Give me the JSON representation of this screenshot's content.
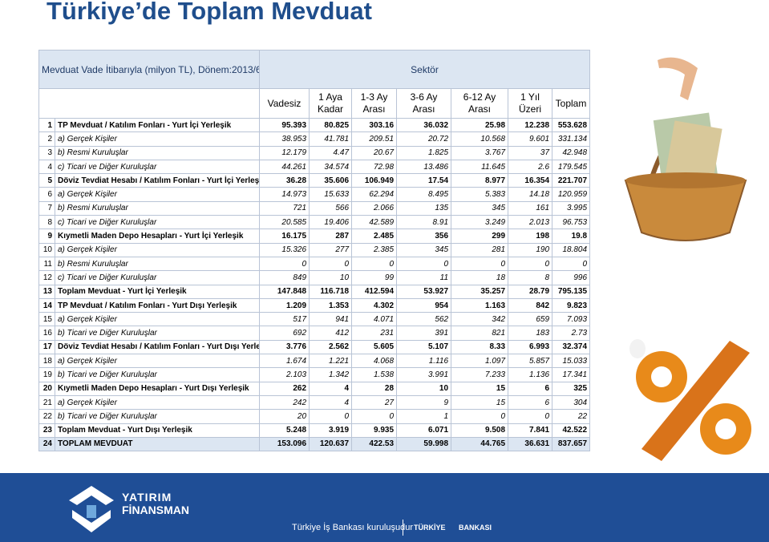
{
  "header": {
    "title": "Türkiye’de Toplam Mevduat"
  },
  "table": {
    "caption": "Mevduat Vade İtibarıyla (milyon TL), Dönem:2013/6",
    "sector": "Sektör",
    "columns": [
      "Vadesiz",
      "1 Aya Kadar",
      "1-3 Ay Arası",
      "3-6 Ay Arası",
      "6-12 Ay Arası",
      "1 Yıl Üzeri",
      "Toplam"
    ],
    "rows": [
      {
        "no": "1",
        "label": "TP Mevduat / Katılım Fonları - Yurt İçi Yerleşik",
        "values": [
          "95.393",
          "80.825",
          "303.16",
          "36.032",
          "25.98",
          "12.238",
          "553.628"
        ]
      },
      {
        "no": "2",
        "label": "a) Gerçek Kişiler",
        "values": [
          "38.953",
          "41.781",
          "209.51",
          "20.72",
          "10.568",
          "9.601",
          "331.134"
        ]
      },
      {
        "no": "3",
        "label": "b) Resmi Kuruluşlar",
        "values": [
          "12.179",
          "4.47",
          "20.67",
          "1.825",
          "3.767",
          "37",
          "42.948"
        ]
      },
      {
        "no": "4",
        "label": "c) Ticari ve Diğer Kuruluşlar",
        "values": [
          "44.261",
          "34.574",
          "72.98",
          "13.486",
          "11.645",
          "2.6",
          "179.545"
        ]
      },
      {
        "no": "5",
        "label": "Döviz Tevdiat Hesabı / Katılım Fonları - Yurt İçi Yerleşik",
        "values": [
          "36.28",
          "35.606",
          "106.949",
          "17.54",
          "8.977",
          "16.354",
          "221.707"
        ]
      },
      {
        "no": "6",
        "label": "a) Gerçek Kişiler",
        "values": [
          "14.973",
          "15.633",
          "62.294",
          "8.495",
          "5.383",
          "14.18",
          "120.959"
        ]
      },
      {
        "no": "7",
        "label": "b) Resmi Kuruluşlar",
        "values": [
          "721",
          "566",
          "2.066",
          "135",
          "345",
          "161",
          "3.995"
        ]
      },
      {
        "no": "8",
        "label": "c) Ticari ve Diğer Kuruluşlar",
        "values": [
          "20.585",
          "19.406",
          "42.589",
          "8.91",
          "3.249",
          "2.013",
          "96.753"
        ]
      },
      {
        "no": "9",
        "label": "Kıymetli Maden Depo Hesapları - Yurt İçi Yerleşik",
        "values": [
          "16.175",
          "287",
          "2.485",
          "356",
          "299",
          "198",
          "19.8"
        ]
      },
      {
        "no": "10",
        "label": "a) Gerçek Kişiler",
        "values": [
          "15.326",
          "277",
          "2.385",
          "345",
          "281",
          "190",
          "18.804"
        ]
      },
      {
        "no": "11",
        "label": "b) Resmi Kuruluşlar",
        "values": [
          "0",
          "0",
          "0",
          "0",
          "0",
          "0",
          "0"
        ]
      },
      {
        "no": "12",
        "label": "c) Ticari ve Diğer Kuruluşlar",
        "values": [
          "849",
          "10",
          "99",
          "11",
          "18",
          "8",
          "996"
        ]
      },
      {
        "no": "13",
        "label": "Toplam Mevduat - Yurt İçi Yerleşik",
        "values": [
          "147.848",
          "116.718",
          "412.594",
          "53.927",
          "35.257",
          "28.79",
          "795.135"
        ]
      },
      {
        "no": "14",
        "label": "TP Mevduat / Katılım Fonları - Yurt Dışı Yerleşik",
        "values": [
          "1.209",
          "1.353",
          "4.302",
          "954",
          "1.163",
          "842",
          "9.823"
        ]
      },
      {
        "no": "15",
        "label": "a) Gerçek Kişiler",
        "values": [
          "517",
          "941",
          "4.071",
          "562",
          "342",
          "659",
          "7.093"
        ]
      },
      {
        "no": "16",
        "label": "b) Ticari ve Diğer Kuruluşlar",
        "values": [
          "692",
          "412",
          "231",
          "391",
          "821",
          "183",
          "2.73"
        ]
      },
      {
        "no": "17",
        "label": "Döviz Tevdiat Hesabı / Katılım Fonları - Yurt Dışı Yerleşik",
        "values": [
          "3.776",
          "2.562",
          "5.605",
          "5.107",
          "8.33",
          "6.993",
          "32.374"
        ]
      },
      {
        "no": "18",
        "label": "a) Gerçek Kişiler",
        "values": [
          "1.674",
          "1.221",
          "4.068",
          "1.116",
          "1.097",
          "5.857",
          "15.033"
        ]
      },
      {
        "no": "19",
        "label": "b) Ticari ve Diğer Kuruluşlar",
        "values": [
          "2.103",
          "1.342",
          "1.538",
          "3.991",
          "7.233",
          "1.136",
          "17.341"
        ]
      },
      {
        "no": "20",
        "label": "Kıymetli Maden Depo Hesapları - Yurt Dışı Yerleşik",
        "values": [
          "262",
          "4",
          "28",
          "10",
          "15",
          "6",
          "325"
        ]
      },
      {
        "no": "21",
        "label": "a) Gerçek Kişiler",
        "values": [
          "242",
          "4",
          "27",
          "9",
          "15",
          "6",
          "304"
        ]
      },
      {
        "no": "22",
        "label": "b) Ticari ve Diğer Kuruluşlar",
        "values": [
          "20",
          "0",
          "0",
          "1",
          "0",
          "0",
          "22"
        ]
      },
      {
        "no": "23",
        "label": "Toplam Mevduat - Yurt Dışı Yerleşik",
        "values": [
          "5.248",
          "3.919",
          "9.935",
          "6.071",
          "9.508",
          "7.841",
          "42.522"
        ]
      },
      {
        "no": "24",
        "label": "TOPLAM MEVDUAT",
        "values": [
          "153.096",
          "120.637",
          "422.53",
          "59.998",
          "44.765",
          "36.631",
          "837.657"
        ]
      }
    ]
  },
  "footer": {
    "brand_top": "YATIRIM",
    "brand_bottom": "FİNANSMAN",
    "tagline": "Türkiye İş Bankası kuruluşudur",
    "bank_top": "TÜRKİYE",
    "bank_bottom": "BANKASI"
  }
}
